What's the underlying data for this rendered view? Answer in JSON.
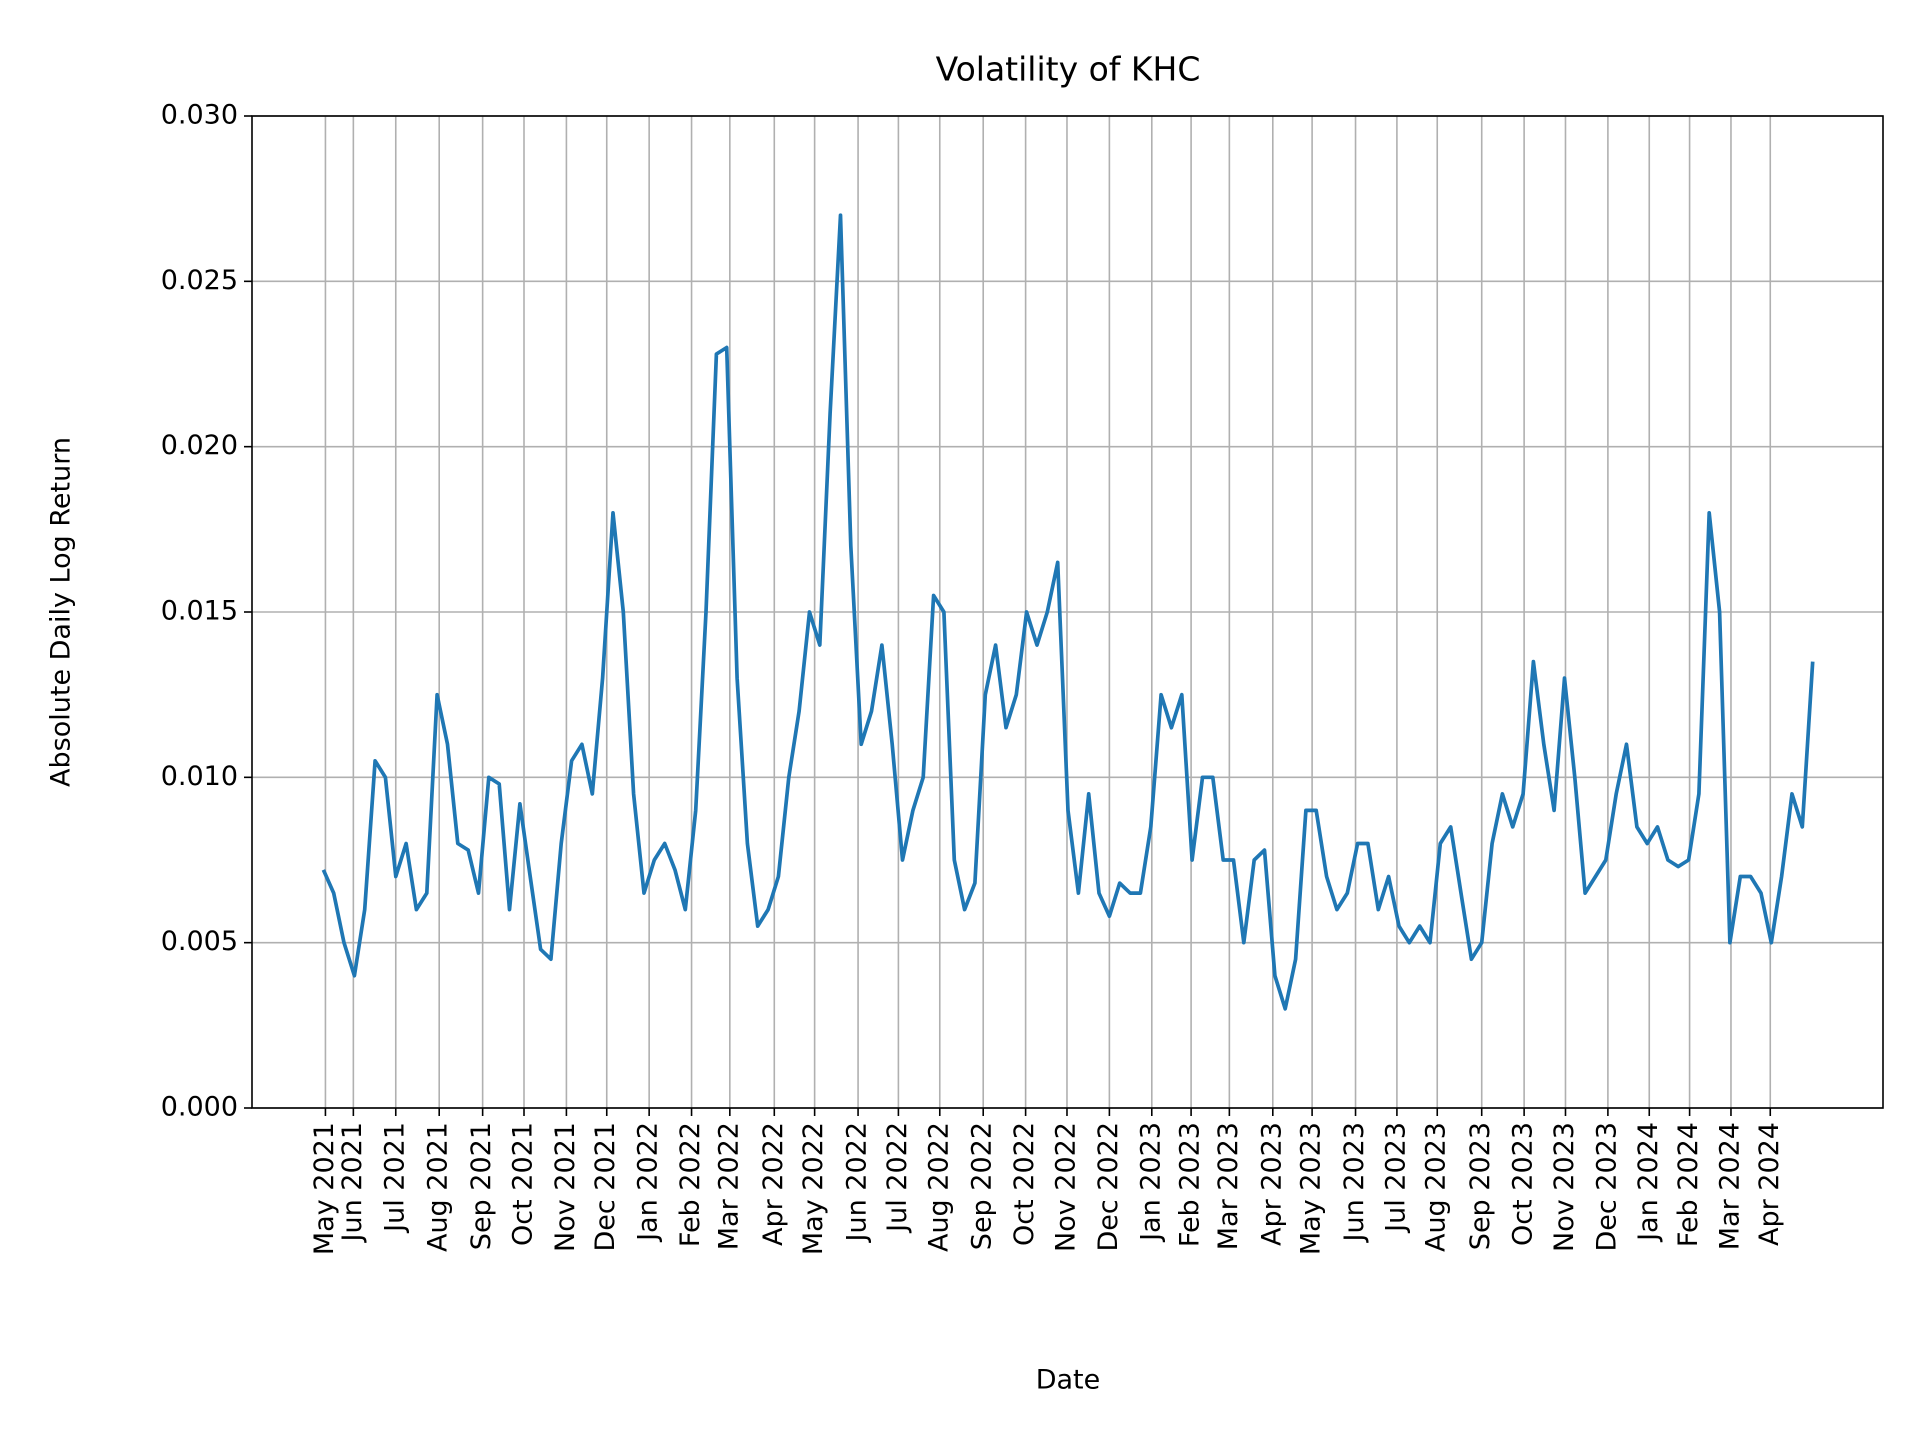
{
  "chart_data": {
    "type": "line",
    "title": "Volatility of KHC",
    "x_label": "Date",
    "y_label": "Absolute Daily Log Return",
    "grid": true,
    "xlim": [
      -6.9,
      150.8
    ],
    "ylim": [
      0,
      0.03
    ],
    "yticks": [
      {
        "value": 0,
        "label": "0.000"
      },
      {
        "value": 0.005,
        "label": "0.005"
      },
      {
        "value": 0.01,
        "label": "0.010"
      },
      {
        "value": 0.015,
        "label": "0.015"
      },
      {
        "value": 0.02,
        "label": "0.020"
      },
      {
        "value": 0.025,
        "label": "0.025"
      },
      {
        "value": 0.03,
        "label": "0.030"
      }
    ],
    "xticks": [
      {
        "value": 0.2,
        "label": "May 2021"
      },
      {
        "value": 2.9,
        "label": "Jun 2021"
      },
      {
        "value": 7.0,
        "label": "Jul 2021"
      },
      {
        "value": 11.2,
        "label": "Aug 2021"
      },
      {
        "value": 15.4,
        "label": "Sep 2021"
      },
      {
        "value": 19.4,
        "label": "Oct 2021"
      },
      {
        "value": 23.5,
        "label": "Nov 2021"
      },
      {
        "value": 27.4,
        "label": "Dec 2021"
      },
      {
        "value": 31.5,
        "label": "Jan 2022"
      },
      {
        "value": 35.6,
        "label": "Feb 2022"
      },
      {
        "value": 39.3,
        "label": "Mar 2022"
      },
      {
        "value": 43.6,
        "label": "Apr 2022"
      },
      {
        "value": 47.5,
        "label": "May 2022"
      },
      {
        "value": 51.7,
        "label": "Jun 2022"
      },
      {
        "value": 55.6,
        "label": "Jul 2022"
      },
      {
        "value": 59.6,
        "label": "Aug 2022"
      },
      {
        "value": 63.8,
        "label": "Sep 2022"
      },
      {
        "value": 67.9,
        "label": "Oct 2022"
      },
      {
        "value": 71.9,
        "label": "Nov 2022"
      },
      {
        "value": 76.0,
        "label": "Dec 2022"
      },
      {
        "value": 80.1,
        "label": "Jan 2023"
      },
      {
        "value": 83.9,
        "label": "Feb 2023"
      },
      {
        "value": 87.6,
        "label": "Mar 2023"
      },
      {
        "value": 91.8,
        "label": "Apr 2023"
      },
      {
        "value": 95.6,
        "label": "May 2023"
      },
      {
        "value": 99.8,
        "label": "Jun 2023"
      },
      {
        "value": 103.8,
        "label": "Jul 2023"
      },
      {
        "value": 107.7,
        "label": "Aug 2023"
      },
      {
        "value": 112.0,
        "label": "Sep 2023"
      },
      {
        "value": 116.1,
        "label": "Oct 2023"
      },
      {
        "value": 120.1,
        "label": "Nov 2023"
      },
      {
        "value": 124.2,
        "label": "Dec 2023"
      },
      {
        "value": 128.2,
        "label": "Jan 2024"
      },
      {
        "value": 132.1,
        "label": "Feb 2024"
      },
      {
        "value": 136.1,
        "label": "Mar 2024"
      },
      {
        "value": 139.9,
        "label": "Apr 2024"
      }
    ],
    "series": [
      {
        "color": "#1f77b4",
        "values": [
          0.0072,
          0.0065,
          0.005,
          0.004,
          0.006,
          0.0105,
          0.01,
          0.007,
          0.008,
          0.006,
          0.0065,
          0.0125,
          0.011,
          0.008,
          0.0078,
          0.0065,
          0.01,
          0.0098,
          0.006,
          0.0092,
          0.007,
          0.0048,
          0.0045,
          0.008,
          0.0105,
          0.011,
          0.0095,
          0.013,
          0.018,
          0.015,
          0.0095,
          0.0065,
          0.0075,
          0.008,
          0.0072,
          0.006,
          0.009,
          0.015,
          0.0228,
          0.023,
          0.013,
          0.008,
          0.0055,
          0.006,
          0.007,
          0.01,
          0.012,
          0.015,
          0.014,
          0.021,
          0.027,
          0.017,
          0.011,
          0.012,
          0.014,
          0.011,
          0.0075,
          0.009,
          0.01,
          0.0155,
          0.015,
          0.0075,
          0.006,
          0.0068,
          0.0125,
          0.014,
          0.0115,
          0.0125,
          0.015,
          0.014,
          0.015,
          0.0165,
          0.009,
          0.0065,
          0.0095,
          0.0065,
          0.0058,
          0.0068,
          0.0065,
          0.0065,
          0.0085,
          0.0125,
          0.0115,
          0.0125,
          0.0075,
          0.01,
          0.01,
          0.0075,
          0.0075,
          0.005,
          0.0075,
          0.0078,
          0.004,
          0.003,
          0.0045,
          0.009,
          0.009,
          0.007,
          0.006,
          0.0065,
          0.008,
          0.008,
          0.006,
          0.007,
          0.0055,
          0.005,
          0.0055,
          0.005,
          0.008,
          0.0085,
          0.0065,
          0.0045,
          0.005,
          0.008,
          0.0095,
          0.0085,
          0.0095,
          0.0135,
          0.011,
          0.009,
          0.013,
          0.01,
          0.0065,
          0.007,
          0.0075,
          0.0095,
          0.011,
          0.0085,
          0.008,
          0.0085,
          0.0075,
          0.0073,
          0.0075,
          0.0095,
          0.018,
          0.015,
          0.005,
          0.007,
          0.007,
          0.0065,
          0.005,
          0.007,
          0.0095,
          0.0085,
          0.0135
        ]
      }
    ]
  }
}
